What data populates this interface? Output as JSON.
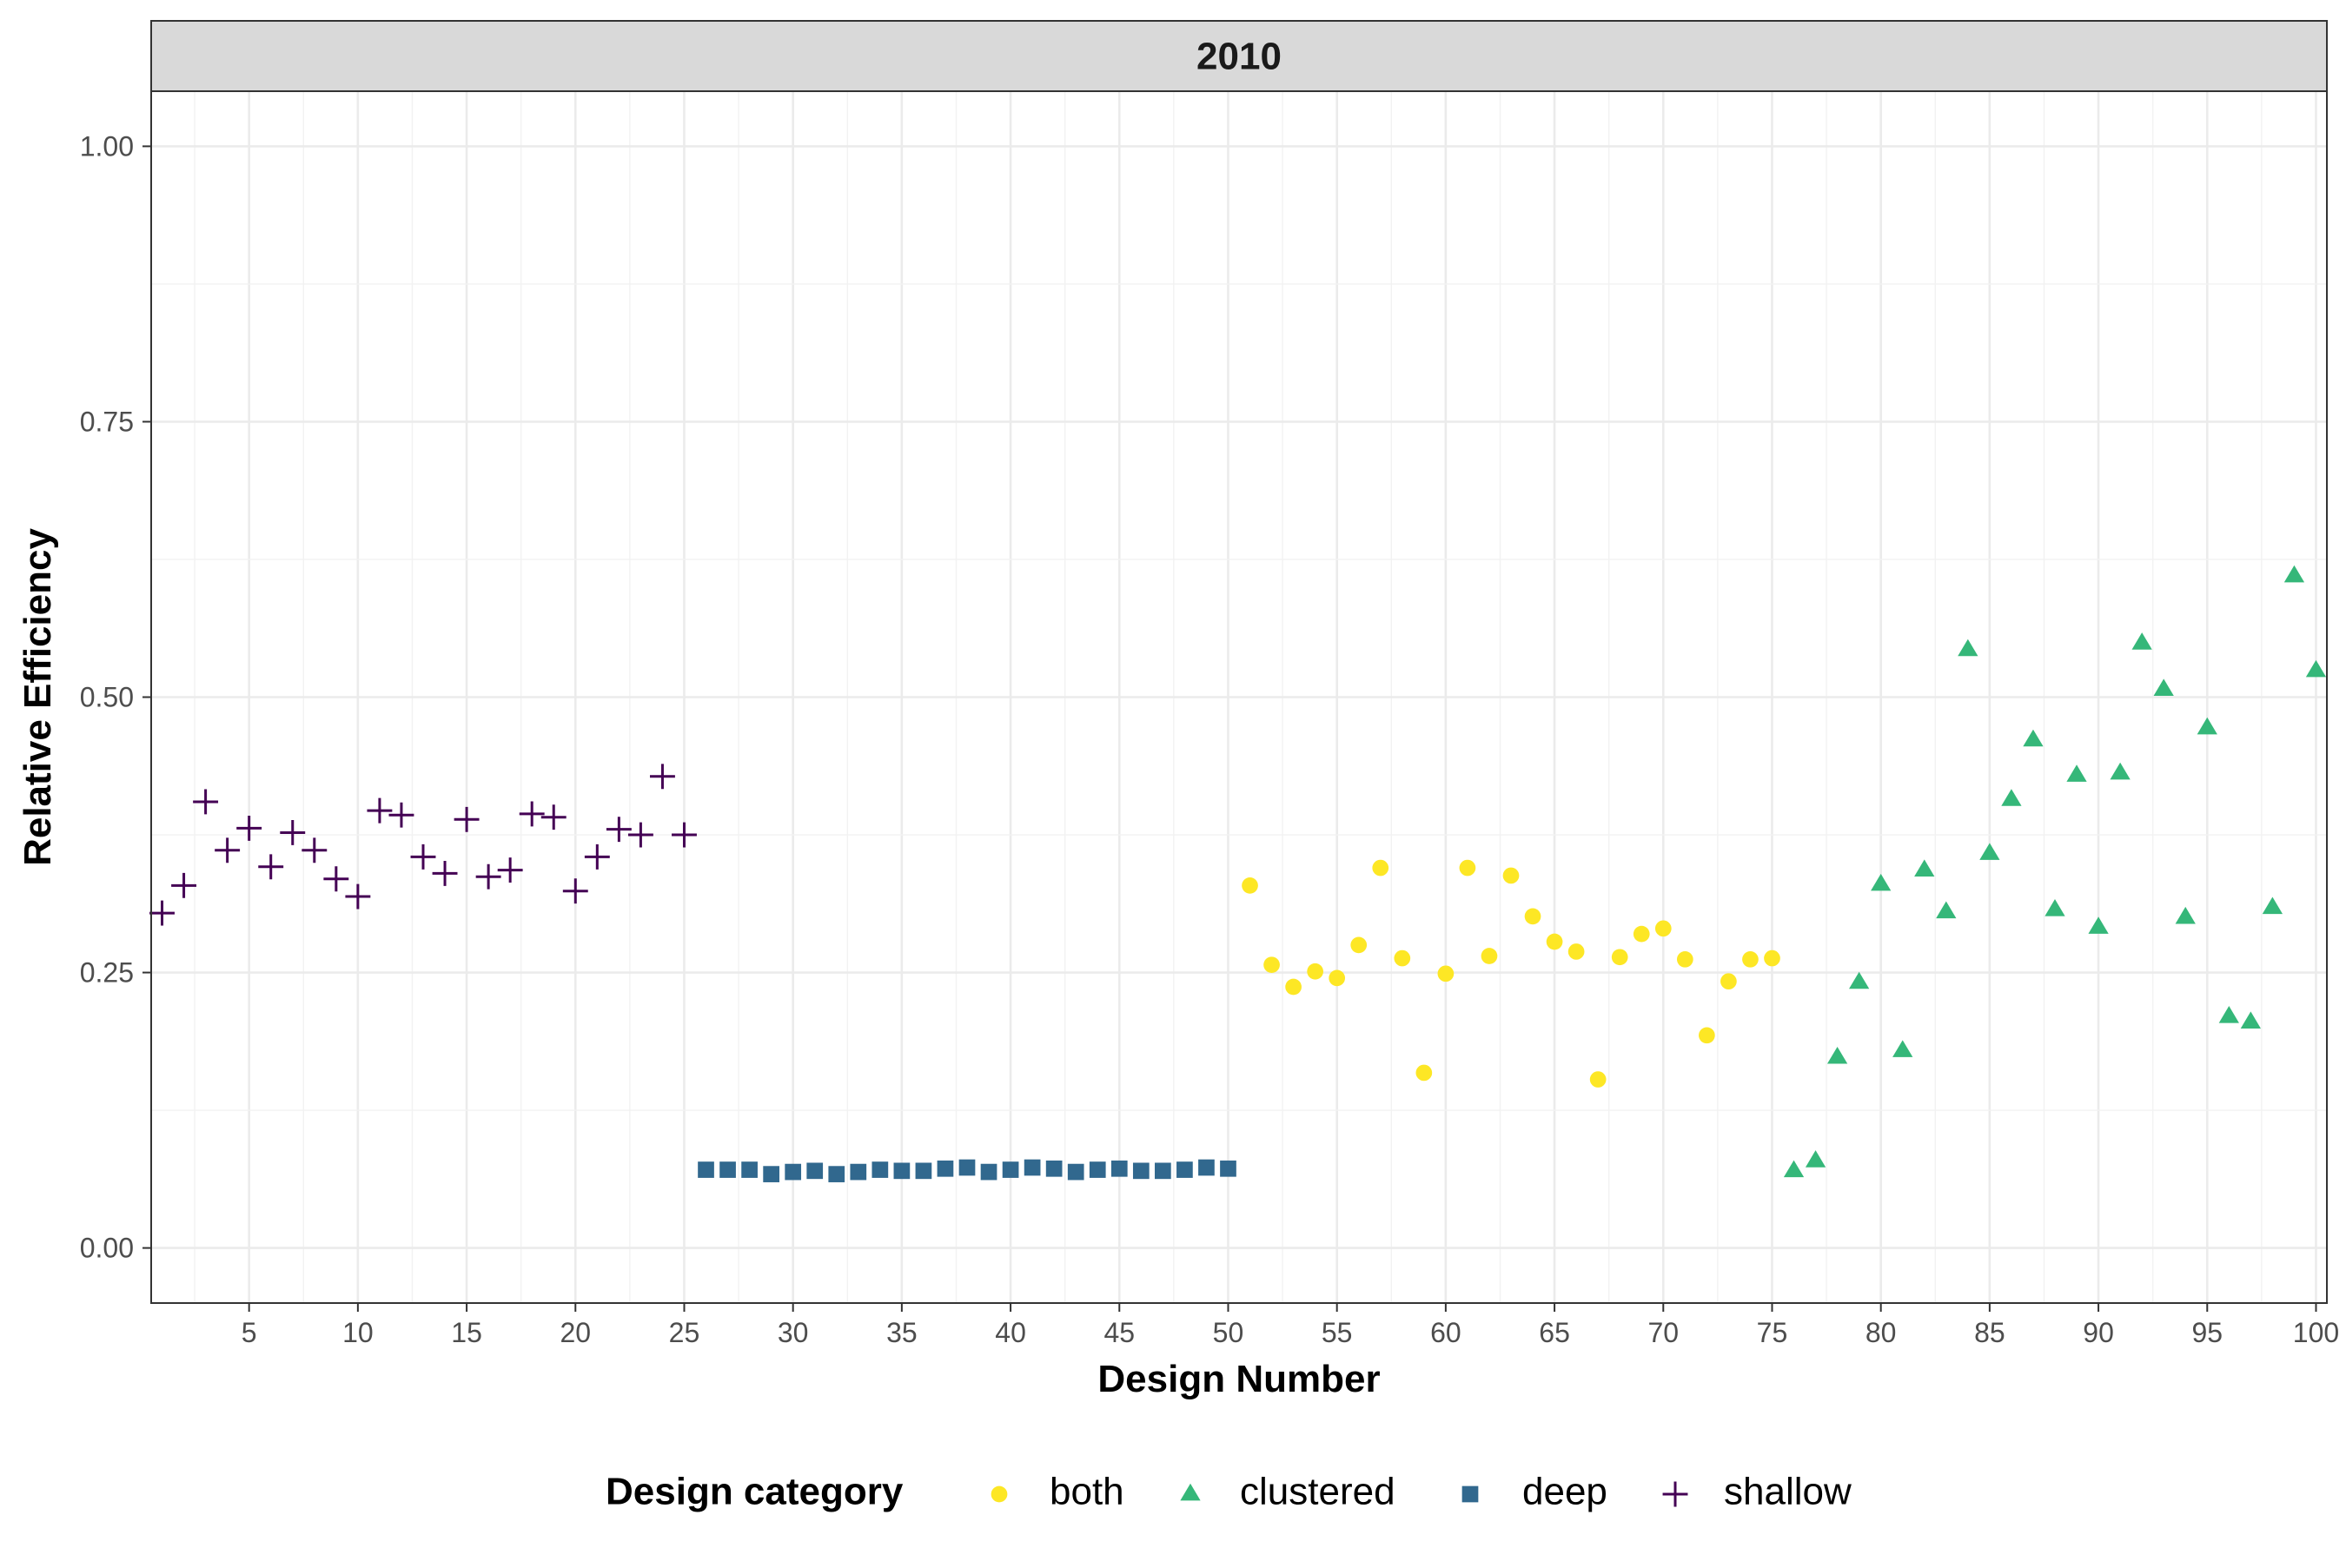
{
  "chart_data": {
    "type": "scatter",
    "facet_label": "2010",
    "xlabel": "Design Number",
    "ylabel": "Relative Efficiency",
    "xlim": [
      0.5,
      100.5
    ],
    "ylim": [
      -0.05,
      1.05
    ],
    "x_ticks": [
      5,
      10,
      15,
      20,
      25,
      30,
      35,
      40,
      45,
      50,
      55,
      60,
      65,
      70,
      75,
      80,
      85,
      90,
      95,
      100
    ],
    "x_tick_labels": [
      "5",
      "10",
      "15",
      "20",
      "25",
      "30",
      "35",
      "40",
      "45",
      "50",
      "55",
      "60",
      "65",
      "70",
      "75",
      "80",
      "85",
      "90",
      "95",
      "100"
    ],
    "y_ticks": [
      0,
      0.25,
      0.5,
      0.75,
      1.0
    ],
    "y_tick_labels": [
      "0.00",
      "0.25",
      "0.50",
      "0.75",
      "1.00"
    ],
    "grid": true,
    "legend": {
      "title": "Design category",
      "position": "bottom",
      "entries": [
        "both",
        "clustered",
        "deep",
        "shallow"
      ]
    },
    "series": [
      {
        "name": "both",
        "marker": "circle",
        "color": "#FDE725",
        "x": [
          51,
          52,
          53,
          54,
          55,
          56,
          57,
          58,
          59,
          60,
          61,
          62,
          63,
          64,
          65,
          66,
          67,
          68,
          69,
          70,
          71,
          72,
          73,
          74,
          75
        ],
        "y": [
          0.329,
          0.257,
          0.237,
          0.251,
          0.245,
          0.275,
          0.345,
          0.263,
          0.159,
          0.249,
          0.345,
          0.265,
          0.338,
          0.301,
          0.278,
          0.269,
          0.153,
          0.264,
          0.285,
          0.29,
          0.262,
          0.193,
          0.242,
          0.262,
          0.263
        ]
      },
      {
        "name": "clustered",
        "marker": "triangle",
        "color": "#35B779",
        "x": [
          76,
          77,
          78,
          79,
          80,
          81,
          82,
          83,
          84,
          85,
          86,
          87,
          88,
          89,
          90,
          91,
          92,
          93,
          94,
          95,
          96,
          97,
          98,
          99,
          100
        ],
        "y": [
          0.07,
          0.079,
          0.173,
          0.241,
          0.33,
          0.179,
          0.343,
          0.305,
          0.543,
          0.358,
          0.407,
          0.461,
          0.307,
          0.429,
          0.291,
          0.431,
          0.549,
          0.507,
          0.3,
          0.472,
          0.21,
          0.205,
          0.309,
          0.61,
          0.524
        ]
      },
      {
        "name": "deep",
        "marker": "square",
        "color": "#31688E",
        "x": [
          26,
          27,
          28,
          29,
          30,
          31,
          32,
          33,
          34,
          35,
          36,
          37,
          38,
          39,
          40,
          41,
          42,
          43,
          44,
          45,
          46,
          47,
          48,
          49,
          50
        ],
        "y": [
          0.071,
          0.071,
          0.071,
          0.067,
          0.069,
          0.07,
          0.067,
          0.069,
          0.071,
          0.07,
          0.07,
          0.072,
          0.073,
          0.069,
          0.071,
          0.073,
          0.072,
          0.069,
          0.071,
          0.072,
          0.07,
          0.07,
          0.071,
          0.073,
          0.072
        ]
      },
      {
        "name": "shallow",
        "marker": "plus",
        "color": "#440154",
        "x": [
          1,
          2,
          3,
          4,
          5,
          6,
          7,
          8,
          9,
          10,
          11,
          12,
          13,
          14,
          15,
          16,
          17,
          18,
          19,
          20,
          21,
          22,
          23,
          24,
          25
        ],
        "y": [
          0.304,
          0.329,
          0.405,
          0.361,
          0.381,
          0.346,
          0.377,
          0.361,
          0.335,
          0.319,
          0.397,
          0.393,
          0.355,
          0.34,
          0.389,
          0.337,
          0.343,
          0.394,
          0.391,
          0.324,
          0.355,
          0.38,
          0.375,
          0.428,
          0.375
        ]
      }
    ]
  }
}
